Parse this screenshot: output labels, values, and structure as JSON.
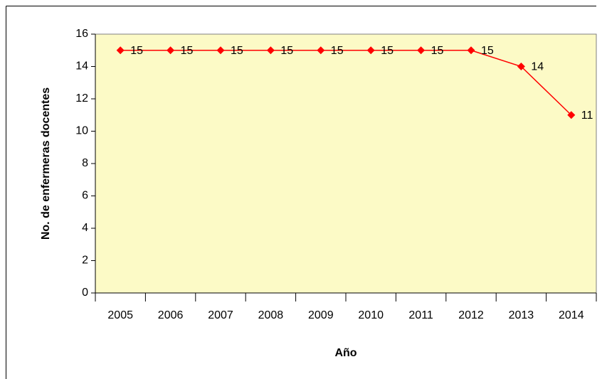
{
  "chart_data": {
    "type": "line",
    "x_label": "Año",
    "y_label": "No. de enfermeras docentes",
    "categories": [
      "2005",
      "2006",
      "2007",
      "2008",
      "2009",
      "2010",
      "2011",
      "2012",
      "2013",
      "2014"
    ],
    "series": [
      {
        "name": "No. de enfermeras docentes",
        "color": "#ff0000",
        "values": [
          15,
          15,
          15,
          15,
          15,
          15,
          15,
          15,
          14,
          11
        ]
      }
    ],
    "ylim": [
      0,
      16
    ],
    "yticks": [
      0,
      2,
      4,
      6,
      8,
      10,
      12,
      14,
      16
    ],
    "plot_background": "#fcfac6"
  }
}
